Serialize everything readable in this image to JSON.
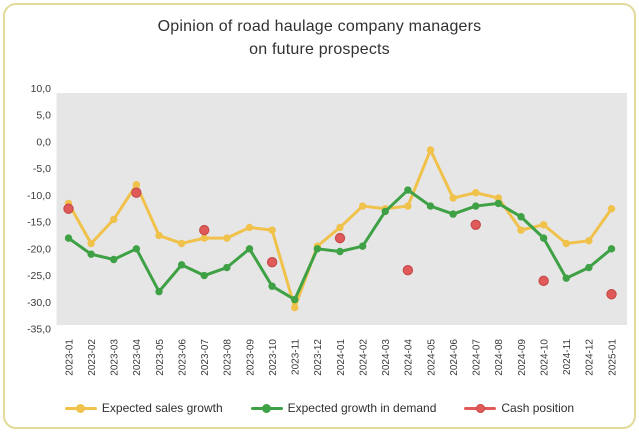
{
  "card": {
    "title_line1": "Opinion of road haulage company managers",
    "title_line2": "on future prospects"
  },
  "chart_data": {
    "type": "line",
    "title": "Opinion of road haulage company managers on future prospects",
    "categories": [
      "2023-01",
      "2023-02",
      "2023-03",
      "2023-04",
      "2023-05",
      "2023-06",
      "2023-07",
      "2023-08",
      "2023-09",
      "2023-10",
      "2023-11",
      "2023-12",
      "2024-01",
      "2024-02",
      "2024-03",
      "2024-04",
      "2024-05",
      "2024-06",
      "2024-07",
      "2024-08",
      "2024-09",
      "2024-10",
      "2024-11",
      "2024-12",
      "2025-01"
    ],
    "series": [
      {
        "name": "Expected sales growth",
        "color": "#f0c24b",
        "line": true,
        "values": [
          -11.5,
          -19,
          -14.5,
          -8,
          -17.5,
          -19,
          -18,
          -18,
          -16,
          -16.5,
          -31,
          -19.5,
          -16,
          -12,
          -12.5,
          -12,
          -1.5,
          -10.5,
          -9.5,
          -10.5,
          -16.5,
          -15.5,
          -19,
          -18.5,
          -12.5
        ]
      },
      {
        "name": "Expected growth in demand",
        "color": "#3fa145",
        "line": true,
        "values": [
          -18,
          -21,
          -22,
          -20,
          -28,
          -23,
          -25,
          -23.5,
          -20,
          -27,
          -29.5,
          -20,
          -20.5,
          -19.5,
          -13,
          -9,
          -12,
          -13.5,
          -12,
          -11.5,
          -14,
          -18,
          -25.5,
          -23.5,
          -20
        ]
      },
      {
        "name": "Cash position",
        "color": "#e05a5a",
        "dot_stroke": "#c64a4a",
        "line": false,
        "values": [
          -12.5,
          null,
          null,
          -9.5,
          null,
          null,
          -16.5,
          null,
          null,
          -22.5,
          null,
          null,
          -18,
          null,
          null,
          -24,
          null,
          null,
          -15.5,
          null,
          null,
          -26,
          null,
          null,
          -28.5
        ]
      }
    ],
    "ylim": [
      -35,
      10
    ],
    "yticks": [
      10,
      5,
      0,
      -5,
      -10,
      -15,
      -20,
      -25,
      -30,
      -35
    ],
    "ytick_labels": [
      "10,0",
      "5,0",
      "0,0",
      "-5,0",
      "-10,0",
      "-15,0",
      "-20,0",
      "-25,0",
      "-30,0",
      "-35,0"
    ],
    "grid": false,
    "plot_bg": "#e6e6e6",
    "legend_position": "bottom"
  }
}
